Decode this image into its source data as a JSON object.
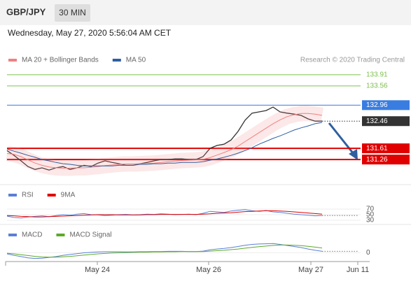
{
  "header": {
    "symbol": "GBP/JPY",
    "interval": "30 MIN",
    "timestamp": "Wednesday, May 27, 2020 5:56:04 AM CET",
    "credit": "Research © 2020 Trading Central"
  },
  "chart_data": [
    {
      "type": "line",
      "x": [
        0,
        1,
        2,
        3,
        4,
        5,
        6,
        7,
        8,
        9,
        10,
        11,
        12,
        13,
        14,
        15,
        16,
        17,
        18,
        19,
        20,
        21,
        22,
        23,
        24,
        25,
        26,
        27,
        28,
        29,
        30,
        31,
        32,
        33,
        34,
        35,
        36,
        37,
        38,
        39,
        40,
        41,
        42,
        43,
        44,
        45
      ],
      "xlim": [
        0,
        51.8
      ],
      "ylim": [
        130.52,
        134.17
      ],
      "series": [
        {
          "color": "#333333",
          "values": [
            131.54,
            131.39,
            131.22,
            131.04,
            130.95,
            131.0,
            130.93,
            131.0,
            131.04,
            130.95,
            131.0,
            131.08,
            131.04,
            131.15,
            131.22,
            131.17,
            131.13,
            131.08,
            131.08,
            131.13,
            131.17,
            131.22,
            131.26,
            131.26,
            131.28,
            131.28,
            131.26,
            131.26,
            131.35,
            131.61,
            131.7,
            131.74,
            131.87,
            132.14,
            132.49,
            132.71,
            132.75,
            132.79,
            132.9,
            132.75,
            132.71,
            132.68,
            132.64,
            132.53,
            132.46,
            132.46
          ]
        },
        {
          "name": "MA 20 + Bollinger Bands",
          "color": "#f08080",
          "band": true,
          "values": [
            131.45,
            131.42,
            131.35,
            131.25,
            131.15,
            131.08,
            131.03,
            131.0,
            130.99,
            130.99,
            131.0,
            131.0,
            131.02,
            131.04,
            131.07,
            131.09,
            131.11,
            131.12,
            131.12,
            131.13,
            131.14,
            131.15,
            131.17,
            131.19,
            131.21,
            131.23,
            131.24,
            131.25,
            131.27,
            131.32,
            131.4,
            131.48,
            131.57,
            131.68,
            131.82,
            131.96,
            132.1,
            132.24,
            132.38,
            132.5,
            132.6,
            132.66,
            132.7,
            132.7,
            132.68,
            132.64
          ]
        },
        {
          "name": "MA 50",
          "color": "#2f5f9f",
          "values": [
            131.59,
            131.52,
            131.46,
            131.39,
            131.33,
            131.26,
            131.22,
            131.17,
            131.13,
            131.11,
            131.08,
            131.06,
            131.06,
            131.06,
            131.06,
            131.06,
            131.08,
            131.08,
            131.08,
            131.11,
            131.11,
            131.13,
            131.13,
            131.15,
            131.15,
            131.17,
            131.17,
            131.17,
            131.19,
            131.24,
            131.28,
            131.33,
            131.39,
            131.46,
            131.54,
            131.63,
            131.74,
            131.83,
            131.92,
            132.0,
            132.09,
            132.18,
            132.25,
            132.31,
            132.38,
            132.42
          ]
        }
      ],
      "levels": [
        {
          "value": 133.91,
          "color": "#7cc04a",
          "style": "text"
        },
        {
          "value": 133.56,
          "color": "#7cc04a",
          "style": "text"
        },
        {
          "value": 132.96,
          "color": "#3a7de0",
          "style": "box"
        },
        {
          "value": 132.46,
          "color": "#333333",
          "style": "current"
        },
        {
          "value": 131.61,
          "color": "#e00000",
          "style": "box",
          "thick": true
        },
        {
          "value": 131.26,
          "color": "#e00000",
          "style": "box",
          "thick": true
        }
      ]
    },
    {
      "type": "line",
      "ylim": [
        22.5,
        92.5
      ],
      "yticks": [
        70,
        50,
        30
      ],
      "series": [
        {
          "name": "RSI",
          "color": "#5b7fd6",
          "values": [
            45,
            40,
            38,
            42,
            44,
            46,
            43,
            47,
            50,
            48,
            52,
            54,
            50,
            49,
            47,
            48,
            50,
            51,
            49,
            50,
            52,
            51,
            53,
            52,
            50,
            51,
            52,
            50,
            55,
            62,
            60,
            58,
            63,
            66,
            68,
            64,
            62,
            65,
            60,
            58,
            55,
            52,
            50,
            48,
            46,
            47
          ]
        },
        {
          "name": "9MA",
          "color": "#e00000",
          "values": [
            47,
            46,
            44,
            43,
            42,
            42,
            43,
            44,
            45,
            46,
            47,
            48,
            49,
            50,
            50,
            50,
            49,
            49,
            49,
            49,
            50,
            50,
            51,
            51,
            51,
            51,
            51,
            51,
            52,
            53,
            55,
            56,
            57,
            59,
            61,
            62,
            63,
            64,
            64,
            63,
            62,
            60,
            58,
            56,
            54,
            52
          ]
        }
      ]
    },
    {
      "type": "line",
      "ylim": [
        -0.35,
        0.55
      ],
      "yticks": [
        0
      ],
      "xticks": [
        {
          "value": 12.9,
          "label": "May 24"
        },
        {
          "value": 28.8,
          "label": "May 26"
        },
        {
          "value": 43.4,
          "label": "May 27"
        },
        {
          "value": 50.1,
          "label": "Jun 11"
        }
      ],
      "series": [
        {
          "name": "MACD",
          "color": "#5b7fd6",
          "values": [
            -0.05,
            -0.12,
            -0.18,
            -0.24,
            -0.27,
            -0.26,
            -0.22,
            -0.18,
            -0.12,
            -0.08,
            -0.04,
            0.0,
            0.02,
            0.04,
            0.05,
            0.05,
            0.05,
            0.04,
            0.04,
            0.05,
            0.05,
            0.06,
            0.06,
            0.07,
            0.07,
            0.07,
            0.06,
            0.06,
            0.08,
            0.14,
            0.18,
            0.21,
            0.25,
            0.3,
            0.36,
            0.4,
            0.42,
            0.43,
            0.44,
            0.4,
            0.35,
            0.3,
            0.25,
            0.18,
            0.12,
            0.07
          ]
        },
        {
          "name": "MACD Signal",
          "color": "#5aaa2a",
          "values": [
            -0.02,
            -0.05,
            -0.09,
            -0.13,
            -0.17,
            -0.2,
            -0.21,
            -0.21,
            -0.19,
            -0.17,
            -0.14,
            -0.11,
            -0.08,
            -0.05,
            -0.03,
            -0.01,
            0.0,
            0.01,
            0.02,
            0.03,
            0.03,
            0.04,
            0.04,
            0.05,
            0.05,
            0.06,
            0.06,
            0.06,
            0.06,
            0.08,
            0.1,
            0.12,
            0.15,
            0.18,
            0.22,
            0.26,
            0.29,
            0.32,
            0.35,
            0.37,
            0.37,
            0.36,
            0.34,
            0.31,
            0.27,
            0.23
          ]
        }
      ]
    }
  ]
}
